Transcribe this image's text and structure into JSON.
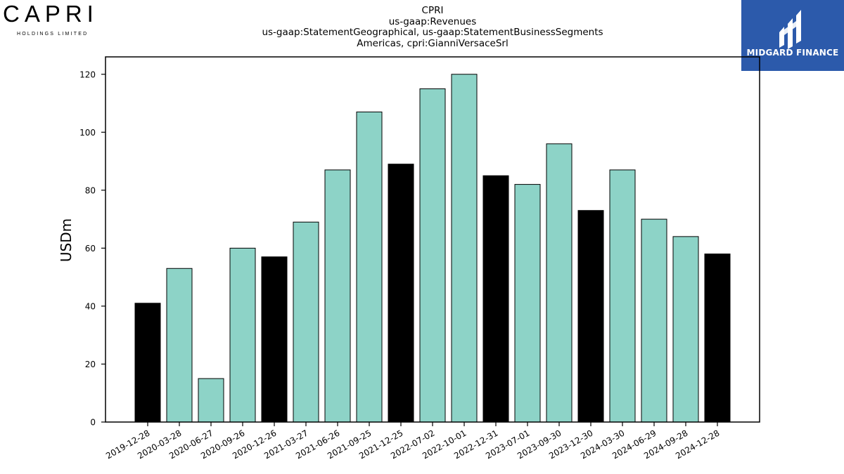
{
  "header": {
    "left_logo": {
      "brand": "CAPRI",
      "subtitle": "HOLDINGS LIMITED"
    },
    "title_lines": [
      "CPRI",
      "us-gaap:Revenues",
      "us-gaap:StatementGeographical, us-gaap:StatementBusinessSegments",
      "Americas, cpri:GianniVersaceSrl"
    ],
    "right_logo": {
      "name": "MIDGARD FINANCE",
      "background": "#2c5aab"
    }
  },
  "chart_data": {
    "type": "bar",
    "ylabel": "USDm",
    "xlabel": "",
    "ylim": [
      0,
      126
    ],
    "yticks": [
      0,
      20,
      40,
      60,
      80,
      100,
      120
    ],
    "grid": false,
    "colors": {
      "quarter": "#8dd3c7",
      "fiscal_year_end": "#000000",
      "edge": "#000000"
    },
    "categories": [
      "2019-12-28",
      "2020-03-28",
      "2020-06-27",
      "2020-09-26",
      "2020-12-26",
      "2021-03-27",
      "2021-06-26",
      "2021-09-25",
      "2021-12-25",
      "2022-07-02",
      "2022-10-01",
      "2022-12-31",
      "2023-07-01",
      "2023-09-30",
      "2023-12-30",
      "2024-03-30",
      "2024-06-29",
      "2024-09-28",
      "2024-12-28"
    ],
    "values": [
      41,
      53,
      15,
      60,
      57,
      69,
      87,
      107,
      89,
      115,
      120,
      85,
      82,
      96,
      73,
      87,
      70,
      64,
      58
    ],
    "highlight": [
      true,
      false,
      false,
      false,
      true,
      false,
      false,
      false,
      true,
      false,
      false,
      true,
      false,
      false,
      true,
      false,
      false,
      false,
      true
    ]
  }
}
